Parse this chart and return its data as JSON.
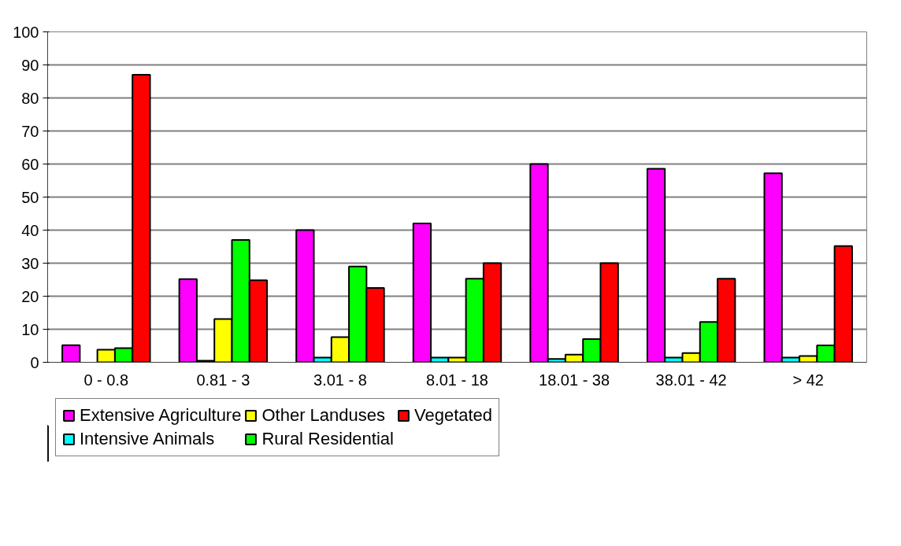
{
  "chart_data": {
    "type": "bar",
    "categories": [
      "0 - 0.8",
      "0.81 - 3",
      "3.01 - 8",
      "8.01 - 18",
      "18.01 - 38",
      "38.01 - 42",
      "> 42"
    ],
    "series": [
      {
        "name": "Extensive Agriculture",
        "color": "#ff00ff",
        "values": [
          5.2,
          25.2,
          40,
          42,
          60,
          58.6,
          57.2
        ]
      },
      {
        "name": "Intensive Animals",
        "color": "#00ffff",
        "values": [
          0,
          0.5,
          1.4,
          1.4,
          1,
          1.4,
          1.4
        ]
      },
      {
        "name": "Other Landuses",
        "color": "#ffff00",
        "values": [
          3.8,
          13.1,
          7.6,
          1.4,
          2.3,
          2.8,
          1.9
        ]
      },
      {
        "name": "Rural Residential",
        "color": "#00ff00",
        "values": [
          4.3,
          37,
          29,
          25.3,
          7,
          12.2,
          5.1
        ]
      },
      {
        "name": "Vegetated",
        "color": "#ff0000",
        "values": [
          87,
          24.8,
          22.5,
          30,
          30,
          25.3,
          35.2
        ]
      }
    ],
    "ylim": [
      0,
      100
    ],
    "yticks": [
      0,
      10,
      20,
      30,
      40,
      50,
      60,
      70,
      80,
      90,
      100
    ],
    "grid": "y",
    "legend": "bottom"
  }
}
